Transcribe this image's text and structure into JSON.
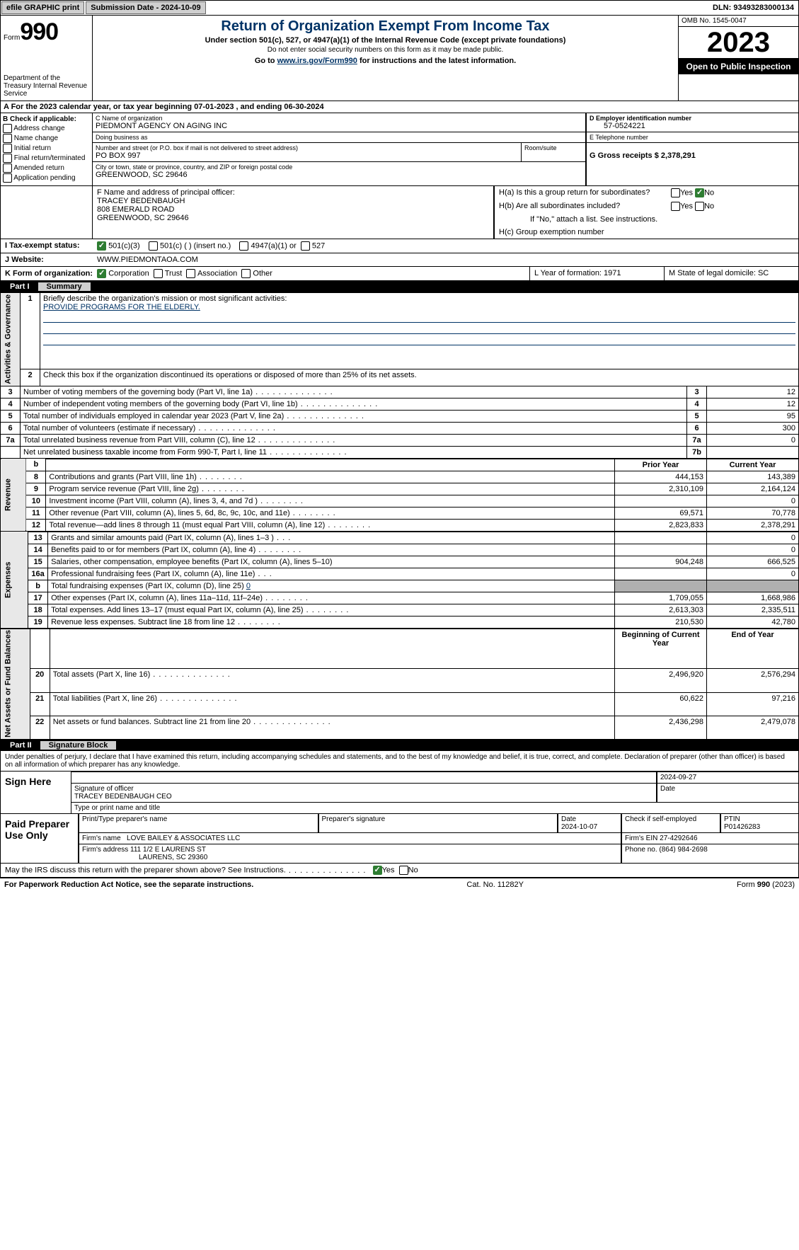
{
  "topbar": {
    "efile": "efile GRAPHIC print",
    "submission_label": "Submission Date - 2024-10-09",
    "dln_label": "DLN: 93493283000134"
  },
  "header": {
    "form_label": "Form",
    "form_num": "990",
    "dept": "Department of the Treasury Internal Revenue Service",
    "title": "Return of Organization Exempt From Income Tax",
    "subtitle": "Under section 501(c), 527, or 4947(a)(1) of the Internal Revenue Code (except private foundations)",
    "subnote": "Do not enter social security numbers on this form as it may be made public.",
    "goto_prefix": "Go to ",
    "goto_link": "www.irs.gov/Form990",
    "goto_suffix": " for instructions and the latest information.",
    "omb": "OMB No. 1545-0047",
    "year": "2023",
    "open": "Open to Public Inspection"
  },
  "section_a": "A  For the 2023 calendar year, or tax year beginning 07-01-2023    , and ending 06-30-2024",
  "box_b": {
    "header": "B Check if applicable:",
    "items": [
      "Address change",
      "Name change",
      "Initial return",
      "Final return/terminated",
      "Amended return",
      "Application pending"
    ]
  },
  "box_c": {
    "name_label": "C Name of organization",
    "name": "PIEDMONT AGENCY ON AGING INC",
    "dba_label": "Doing business as",
    "dba": "",
    "street_label": "Number and street (or P.O. box if mail is not delivered to street address)",
    "street": "PO BOX 997",
    "room_label": "Room/suite",
    "city_label": "City or town, state or province, country, and ZIP or foreign postal code",
    "city": "GREENWOOD, SC  29646"
  },
  "box_d": {
    "label": "D Employer identification number",
    "val": "57-0524221"
  },
  "box_e": {
    "label": "E Telephone number",
    "val": ""
  },
  "box_g": {
    "label": "G Gross receipts $ 2,378,291"
  },
  "box_f": {
    "label": "F  Name and address of principal officer:",
    "name": "TRACEY BEDENBAUGH",
    "addr1": "808 EMERALD ROAD",
    "addr2": "GREENWOOD, SC  29646"
  },
  "box_h": {
    "a": "H(a)  Is this a group return for subordinates?",
    "b": "H(b)  Are all subordinates included?",
    "note": "If \"No,\" attach a list. See instructions.",
    "c": "H(c)  Group exemption number"
  },
  "row_i": {
    "lbl": "I    Tax-exempt status:",
    "o1": "501(c)(3)",
    "o2": "501(c) (  ) (insert no.)",
    "o3": "4947(a)(1) or",
    "o4": "527"
  },
  "row_j": {
    "lbl": "J    Website:",
    "val": "WWW.PIEDMONTAOA.COM"
  },
  "row_k": {
    "lbl": "K Form of organization:",
    "o1": "Corporation",
    "o2": "Trust",
    "o3": "Association",
    "o4": "Other"
  },
  "row_l": "L Year of formation: 1971",
  "row_m": "M State of legal domicile: SC",
  "part1": {
    "num": "Part I",
    "title": "Summary"
  },
  "summary": {
    "vlabels": {
      "ag": "Activities & Governance",
      "rev": "Revenue",
      "exp": "Expenses",
      "na": "Net Assets or Fund Balances"
    },
    "line1": "Briefly describe the organization's mission or most significant activities:",
    "mission": "PROVIDE PROGRAMS FOR THE ELDERLY.",
    "line2": "Check this box           if the organization discontinued its operations or disposed of more than 25% of its net assets.",
    "rows_ag": [
      {
        "n": "3",
        "t": "Number of voting members of the governing body (Part VI, line 1a)",
        "rn": "3",
        "v": "12"
      },
      {
        "n": "4",
        "t": "Number of independent voting members of the governing body (Part VI, line 1b)",
        "rn": "4",
        "v": "12"
      },
      {
        "n": "5",
        "t": "Total number of individuals employed in calendar year 2023 (Part V, line 2a)",
        "rn": "5",
        "v": "95"
      },
      {
        "n": "6",
        "t": "Total number of volunteers (estimate if necessary)",
        "rn": "6",
        "v": "300"
      },
      {
        "n": "7a",
        "t": "Total unrelated business revenue from Part VIII, column (C), line 12",
        "rn": "7a",
        "v": "0"
      },
      {
        "n": "",
        "t": "Net unrelated business taxable income from Form 990-T, Part I, line 11",
        "rn": "7b",
        "v": ""
      }
    ],
    "col_head_prior": "Prior Year",
    "col_head_curr": "Current Year",
    "rows_rev": [
      {
        "n": "8",
        "t": "Contributions and grants (Part VIII, line 1h)",
        "p": "444,153",
        "c": "143,389"
      },
      {
        "n": "9",
        "t": "Program service revenue (Part VIII, line 2g)",
        "p": "2,310,109",
        "c": "2,164,124"
      },
      {
        "n": "10",
        "t": "Investment income (Part VIII, column (A), lines 3, 4, and 7d )",
        "p": "",
        "c": "0"
      },
      {
        "n": "11",
        "t": "Other revenue (Part VIII, column (A), lines 5, 6d, 8c, 9c, 10c, and 11e)",
        "p": "69,571",
        "c": "70,778"
      },
      {
        "n": "12",
        "t": "Total revenue—add lines 8 through 11 (must equal Part VIII, column (A), line 12)",
        "p": "2,823,833",
        "c": "2,378,291"
      }
    ],
    "rows_exp": [
      {
        "n": "13",
        "t": "Grants and similar amounts paid (Part IX, column (A), lines 1–3 )",
        "p": "",
        "c": "0",
        "d": "xs"
      },
      {
        "n": "14",
        "t": "Benefits paid to or for members (Part IX, column (A), line 4)",
        "p": "",
        "c": "0",
        "d": "s"
      },
      {
        "n": "15",
        "t": "Salaries, other compensation, employee benefits (Part IX, column (A), lines 5–10)",
        "p": "904,248",
        "c": "666,525",
        "d": ""
      },
      {
        "n": "16a",
        "t": "Professional fundraising fees (Part IX, column (A), line 11e)",
        "p": "",
        "c": "0",
        "d": "xs"
      }
    ],
    "line16b_pre": "Total fundraising expenses (Part IX, column (D), line 25)",
    "line16b_val": "0",
    "rows_exp2": [
      {
        "n": "17",
        "t": "Other expenses (Part IX, column (A), lines 11a–11d, 11f–24e)",
        "p": "1,709,055",
        "c": "1,668,986"
      },
      {
        "n": "18",
        "t": "Total expenses. Add lines 13–17 (must equal Part IX, column (A), line 25)",
        "p": "2,613,303",
        "c": "2,335,511"
      },
      {
        "n": "19",
        "t": "Revenue less expenses. Subtract line 18 from line 12",
        "p": "210,530",
        "c": "42,780"
      }
    ],
    "col_head_beg": "Beginning of Current Year",
    "col_head_end": "End of Year",
    "rows_na": [
      {
        "n": "20",
        "t": "Total assets (Part X, line 16)",
        "p": "2,496,920",
        "c": "2,576,294"
      },
      {
        "n": "21",
        "t": "Total liabilities (Part X, line 26)",
        "p": "60,622",
        "c": "97,216"
      },
      {
        "n": "22",
        "t": "Net assets or fund balances. Subtract line 21 from line 20",
        "p": "2,436,298",
        "c": "2,479,078"
      }
    ]
  },
  "part2": {
    "num": "Part II",
    "title": "Signature Block"
  },
  "perjury": "Under penalties of perjury, I declare that I have examined this return, including accompanying schedules and statements, and to the best of my knowledge and belief, it is true, correct, and complete. Declaration of preparer (other than officer) is based on all information of which preparer has any knowledge.",
  "sign": {
    "here": "Sign Here",
    "sig_officer_lbl": "Signature of officer",
    "date_lbl": "Date",
    "date_val": "2024-09-27",
    "officer": "TRACEY BEDENBAUGH  CEO",
    "type_lbl": "Type or print name and title"
  },
  "preparer": {
    "here": "Paid Preparer Use Only",
    "name_lbl": "Print/Type preparer's name",
    "sig_lbl": "Preparer's signature",
    "date_lbl": "Date",
    "date_val": "2024-10-07",
    "self_lbl": "Check          if self-employed",
    "ptin_lbl": "PTIN",
    "ptin": "P01426283",
    "firm_name_lbl": "Firm's name",
    "firm_name": "LOVE BAILEY & ASSOCIATES LLC",
    "firm_ein_lbl": "Firm's EIN",
    "firm_ein": "27-4292646",
    "firm_addr_lbl": "Firm's address",
    "firm_addr1": "111 1/2 E LAURENS ST",
    "firm_addr2": "LAURENS, SC  29360",
    "phone_lbl": "Phone no.",
    "phone": "(864) 984-2698"
  },
  "discuss": "May the IRS discuss this return with the preparer shown above? See Instructions.",
  "footer": {
    "l": "For Paperwork Reduction Act Notice, see the separate instructions.",
    "m": "Cat. No. 11282Y",
    "r": "Form 990 (2023)"
  },
  "yesno": {
    "yes": "Yes",
    "no": "No"
  }
}
